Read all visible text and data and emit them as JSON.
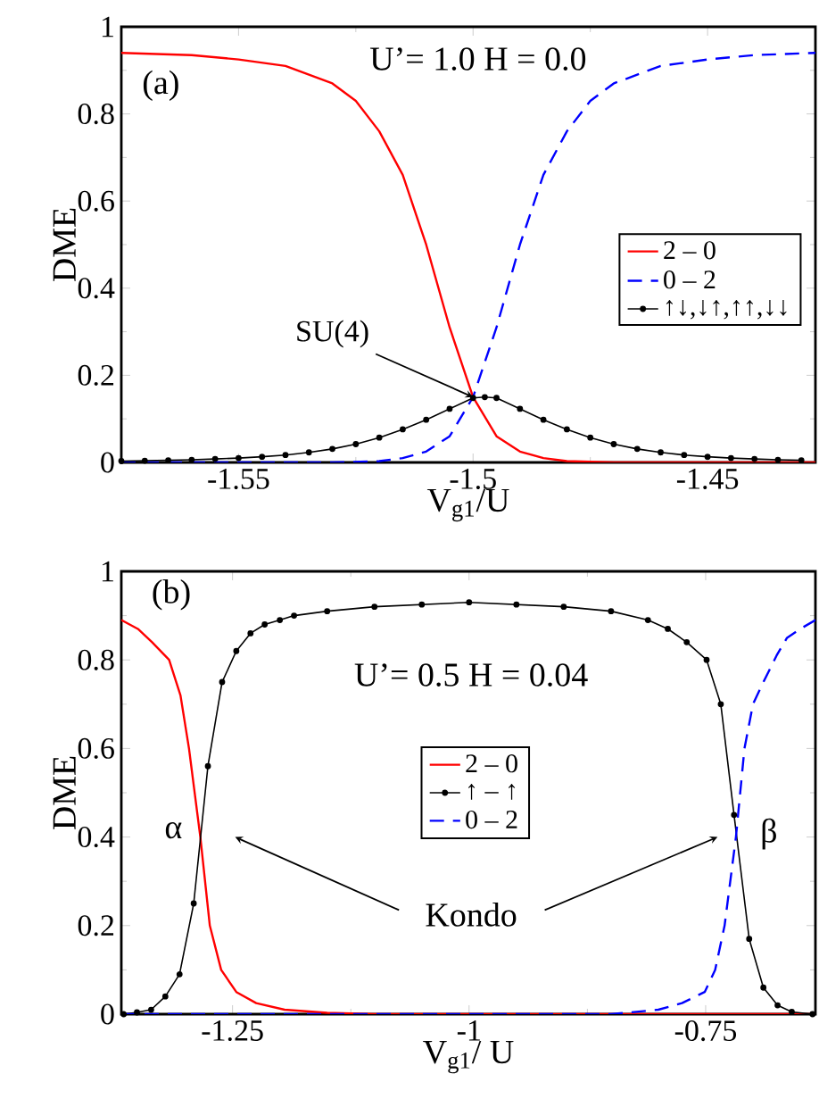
{
  "chart_data": [
    {
      "type": "line",
      "xlabel": "V$_{g1}$/U",
      "ylabel": "DME",
      "xlim": [
        -1.575,
        -1.427
      ],
      "ylim": [
        0,
        1
      ],
      "xticks": [
        -1.55,
        -1.5,
        -1.45
      ],
      "yticks": [
        0,
        0.2,
        0.4,
        0.6,
        0.8,
        1
      ],
      "legend": "right",
      "annotations": [
        "(a)",
        "U’= 1.0    H = 0.0",
        {
          "text": "SU(4)",
          "x": -1.5,
          "y": 0.15
        }
      ],
      "series": [
        {
          "name": "2 – 0",
          "color": "#ff0000",
          "line_style": "solid",
          "marker": "none",
          "x": [
            -1.575,
            -1.56,
            -1.55,
            -1.54,
            -1.53,
            -1.525,
            -1.52,
            -1.515,
            -1.51,
            -1.505,
            -1.5,
            -1.495,
            -1.49,
            -1.485,
            -1.48,
            -1.47,
            -1.427
          ],
          "values": [
            0.94,
            0.935,
            0.925,
            0.91,
            0.87,
            0.83,
            0.76,
            0.66,
            0.5,
            0.31,
            0.15,
            0.06,
            0.025,
            0.01,
            0.003,
            0,
            0
          ]
        },
        {
          "name": "0 – 2",
          "color": "#0000ff",
          "line_style": "dashed",
          "marker": "none",
          "x": [
            -1.575,
            -1.53,
            -1.52,
            -1.515,
            -1.51,
            -1.505,
            -1.5,
            -1.495,
            -1.49,
            -1.485,
            -1.48,
            -1.475,
            -1.47,
            -1.46,
            -1.45,
            -1.44,
            -1.427
          ],
          "values": [
            0,
            0,
            0.003,
            0.01,
            0.025,
            0.06,
            0.15,
            0.31,
            0.5,
            0.66,
            0.76,
            0.83,
            0.87,
            0.91,
            0.925,
            0.935,
            0.94
          ]
        },
        {
          "name": "↑↓,↓↑,↑↑,↓↓",
          "color": "#000000",
          "line_style": "solid",
          "marker": "circle",
          "x": [
            -1.575,
            -1.57,
            -1.565,
            -1.56,
            -1.555,
            -1.55,
            -1.545,
            -1.54,
            -1.535,
            -1.53,
            -1.525,
            -1.52,
            -1.515,
            -1.51,
            -1.505,
            -1.5,
            -1.4975,
            -1.495,
            -1.49,
            -1.485,
            -1.48,
            -1.475,
            -1.47,
            -1.465,
            -1.46,
            -1.455,
            -1.45,
            -1.445,
            -1.44,
            -1.435,
            -1.43
          ],
          "values": [
            0.003,
            0.004,
            0.005,
            0.006,
            0.008,
            0.01,
            0.013,
            0.017,
            0.023,
            0.031,
            0.042,
            0.057,
            0.076,
            0.098,
            0.123,
            0.148,
            0.15,
            0.148,
            0.123,
            0.098,
            0.076,
            0.057,
            0.042,
            0.031,
            0.023,
            0.017,
            0.013,
            0.01,
            0.008,
            0.006,
            0.005
          ]
        }
      ]
    },
    {
      "type": "line",
      "xlabel": "V$_{g1}$/ U",
      "ylabel": "DME",
      "xlim": [
        -1.3675,
        -0.634
      ],
      "ylim": [
        0,
        1
      ],
      "xticks": [
        -1.25,
        -1,
        -0.75
      ],
      "yticks": [
        0,
        0.2,
        0.4,
        0.6,
        0.8,
        1
      ],
      "legend": "center",
      "annotations": [
        "(b)",
        "U’= 0.5    H = 0.04",
        "α",
        "β",
        "Kondo"
      ],
      "series": [
        {
          "name": "2 – 0",
          "color": "#ff0000",
          "line_style": "solid",
          "marker": "none",
          "x": [
            -1.3675,
            -1.35,
            -1.335,
            -1.317,
            -1.305,
            -1.296,
            -1.284,
            -1.274,
            -1.262,
            -1.246,
            -1.225,
            -1.195,
            -1.15,
            -1.1,
            -0.634
          ],
          "values": [
            0.89,
            0.87,
            0.84,
            0.8,
            0.72,
            0.6,
            0.4,
            0.2,
            0.1,
            0.05,
            0.025,
            0.01,
            0.003,
            0,
            0
          ]
        },
        {
          "name": "↑ – ↑",
          "color": "#000000",
          "line_style": "solid",
          "marker": "circle",
          "x": [
            -1.365,
            -1.351,
            -1.336,
            -1.321,
            -1.306,
            -1.291,
            -1.276,
            -1.261,
            -1.246,
            -1.231,
            -1.216,
            -1.2,
            -1.185,
            -1.15,
            -1.1,
            -1.05,
            -1.0,
            -0.95,
            -0.9,
            -0.85,
            -0.811,
            -0.79,
            -0.77,
            -0.749,
            -0.734,
            -0.72,
            -0.704,
            -0.689,
            -0.674,
            -0.659,
            -0.637
          ],
          "values": [
            0,
            0.004,
            0.01,
            0.04,
            0.09,
            0.25,
            0.56,
            0.75,
            0.82,
            0.86,
            0.88,
            0.89,
            0.9,
            0.91,
            0.92,
            0.925,
            0.93,
            0.925,
            0.92,
            0.91,
            0.89,
            0.87,
            0.84,
            0.8,
            0.7,
            0.45,
            0.17,
            0.06,
            0.02,
            0.005,
            0
          ]
        },
        {
          "name": "0 – 2",
          "color": "#0000ff",
          "line_style": "dashed",
          "marker": "none",
          "x": [
            -1.3675,
            -0.85,
            -0.8,
            -0.775,
            -0.751,
            -0.74,
            -0.73,
            -0.718,
            -0.709,
            -0.7,
            -0.689,
            -0.675,
            -0.664,
            -0.65,
            -0.634
          ],
          "values": [
            0,
            0,
            0.01,
            0.025,
            0.05,
            0.1,
            0.2,
            0.4,
            0.6,
            0.7,
            0.75,
            0.81,
            0.85,
            0.87,
            0.89
          ]
        }
      ]
    }
  ]
}
